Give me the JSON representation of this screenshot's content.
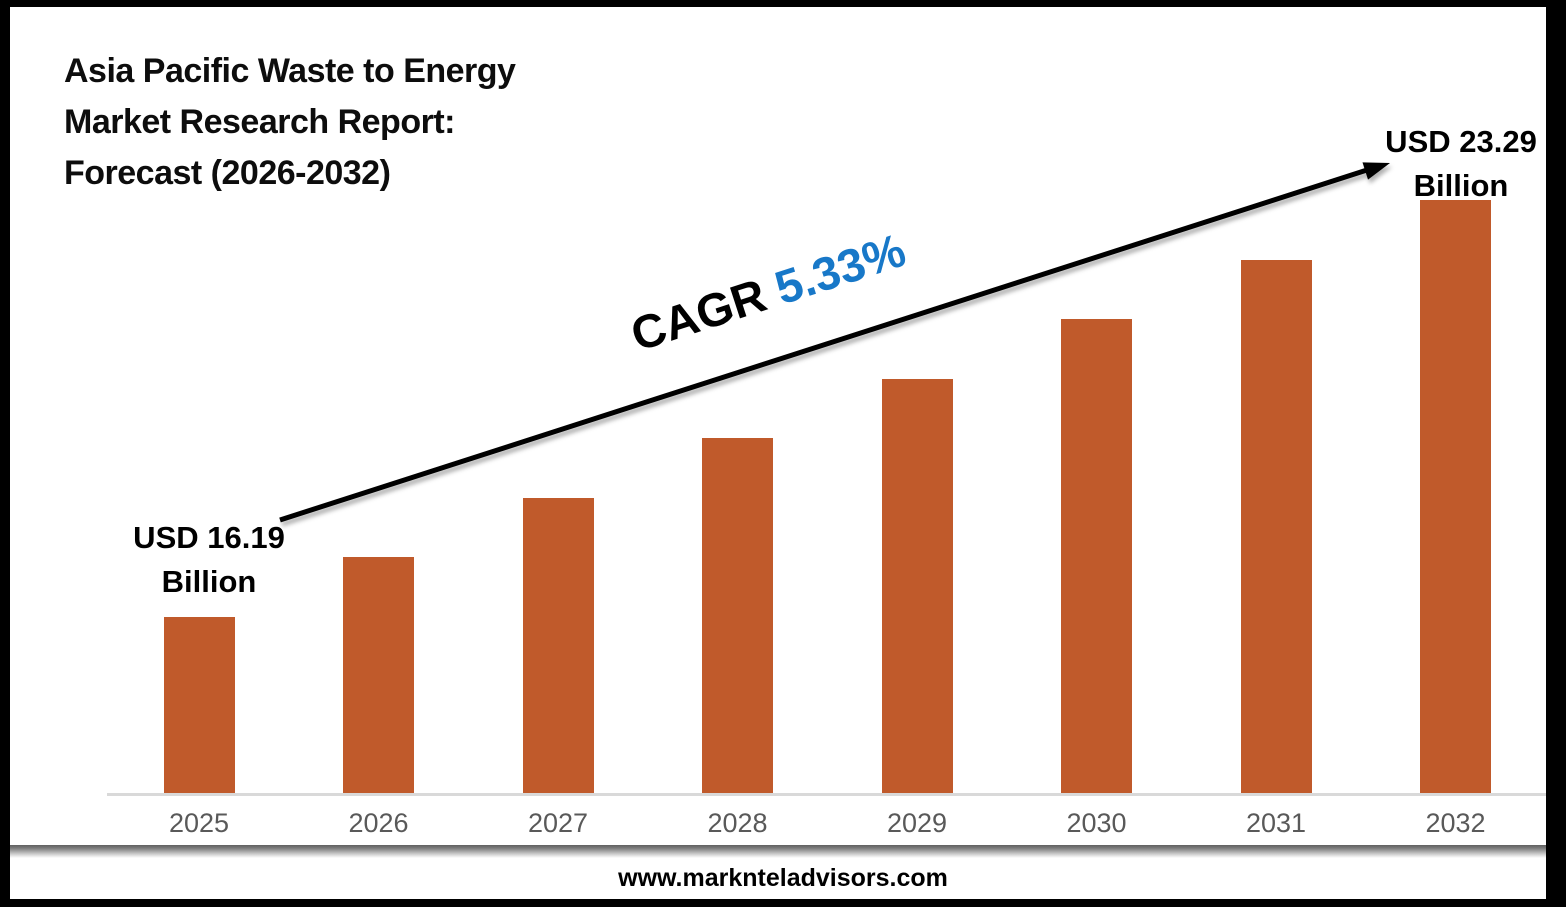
{
  "title": {
    "line1": "Asia Pacific Waste to Energy",
    "line2": "Market Research Report:",
    "line3": "Forecast (2026-2032)"
  },
  "labels": {
    "start_value_line1": "USD 16.19",
    "start_value_line2": "Billion",
    "end_value_line1": "USD 23.29",
    "end_value_line2": "Billion",
    "cagr_prefix": "CAGR ",
    "cagr_value": "5.33%"
  },
  "footer": {
    "website": "www.marknteladvisors.com"
  },
  "colors": {
    "bar": "#C05A2B",
    "cagr_value": "#1878C8",
    "axis_line": "#D9D9D9",
    "year_label": "#595959",
    "text": "#000000",
    "frame": "#000000"
  },
  "chart_data": {
    "type": "bar",
    "title": "Asia Pacific Waste to Energy Market Research Report: Forecast (2026-2032)",
    "categories": [
      "2025",
      "2026",
      "2027",
      "2028",
      "2029",
      "2030",
      "2031",
      "2032"
    ],
    "values": [
      16.19,
      17.05,
      17.96,
      18.92,
      19.93,
      20.99,
      22.11,
      23.29
    ],
    "unit": "USD Billion",
    "cagr_percent": 5.33,
    "value_labels": {
      "2025": "USD 16.19 Billion",
      "2032": "USD 23.29 Billion"
    },
    "xlabel": "",
    "ylabel": "",
    "grid": false,
    "legend": false,
    "bar_color": "#C05A2B",
    "note": "Only first and last bars carry data labels; intermediate values estimated from the 5.33% CAGR; bars drawn with equal height increments (axis not zero-based)."
  }
}
